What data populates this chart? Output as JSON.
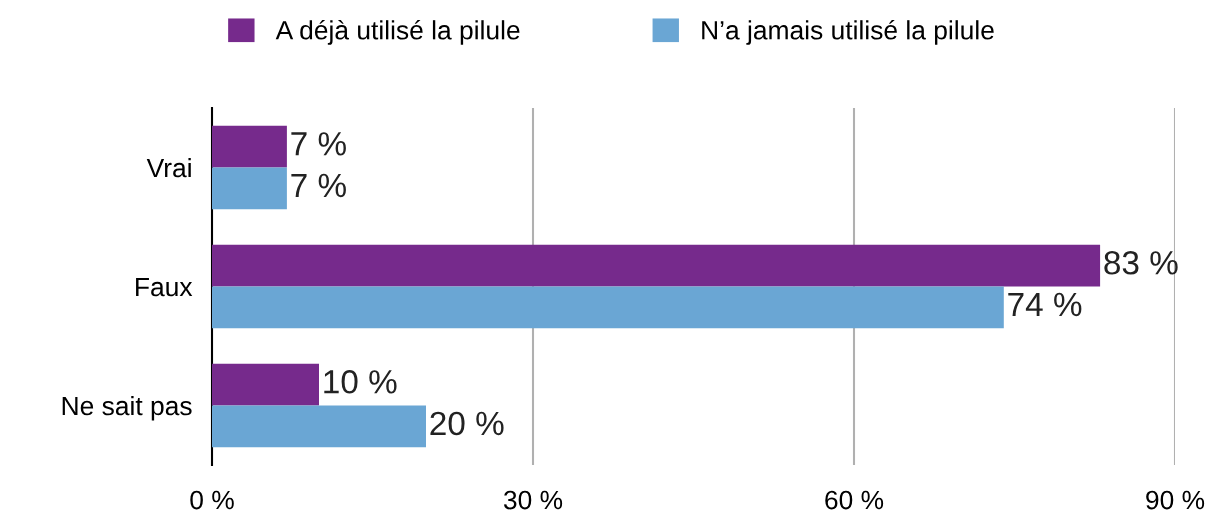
{
  "chart_data": {
    "type": "bar",
    "orientation": "horizontal",
    "categories": [
      "Vrai",
      "Faux",
      "Ne sait pas"
    ],
    "series": [
      {
        "name": "A déjà utilisé la pilule",
        "color": "#762a8c",
        "values": [
          7,
          83,
          10
        ],
        "value_labels": [
          "7 %",
          "83 %",
          "10 %"
        ]
      },
      {
        "name": "N’a jamais utilisé la pilule",
        "color": "#6aa6d4",
        "values": [
          7,
          74,
          20
        ],
        "value_labels": [
          "7 %",
          "74 %",
          "20 %"
        ]
      }
    ],
    "xlim": [
      0,
      90
    ],
    "xticks": [
      {
        "value": 0,
        "label": "0 %"
      },
      {
        "value": 30,
        "label": "30 %"
      },
      {
        "value": 60,
        "label": "60 %"
      },
      {
        "value": 90,
        "label": "90 %"
      }
    ],
    "grid": "x",
    "legend": "top"
  }
}
